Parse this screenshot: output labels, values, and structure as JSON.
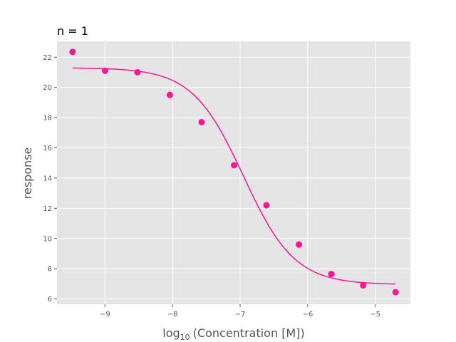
{
  "chart_data": {
    "type": "scatter",
    "title": "n = 1",
    "xlabel_base": "log",
    "xlabel_sub": "10",
    "xlabel_rest": "(Concentration [M])",
    "ylabel": "response",
    "xlim": [
      -9.71,
      -4.48
    ],
    "ylim": [
      5.65,
      23.05
    ],
    "xticks": [
      -9,
      -8,
      -7,
      -6,
      -5
    ],
    "xtick_labels": [
      "−9",
      "−8",
      "−7",
      "−6",
      "−5"
    ],
    "yticks": [
      6,
      8,
      10,
      12,
      14,
      16,
      18,
      20,
      22
    ],
    "ytick_labels": [
      "6",
      "8",
      "10",
      "12",
      "14",
      "16",
      "18",
      "20",
      "22"
    ],
    "grid": true,
    "series": [
      {
        "kind": "points",
        "x": [
          -9.48,
          -9.0,
          -8.52,
          -8.04,
          -7.57,
          -7.09,
          -6.61,
          -6.13,
          -5.65,
          -5.18,
          -4.7
        ],
        "y": [
          22.35,
          21.1,
          21.0,
          19.5,
          17.7,
          14.85,
          12.2,
          9.6,
          7.65,
          6.9,
          6.45
        ]
      },
      {
        "kind": "fit",
        "model": "logistic",
        "top": 21.3,
        "bottom": 6.95,
        "logEC50": -6.95,
        "hill": 1.15,
        "x_range": [
          -9.48,
          -4.7
        ]
      }
    ],
    "colors": {
      "series": "#ff1493",
      "background": "#e5e5e5",
      "grid": "#ffffff",
      "text": "#555555"
    }
  }
}
